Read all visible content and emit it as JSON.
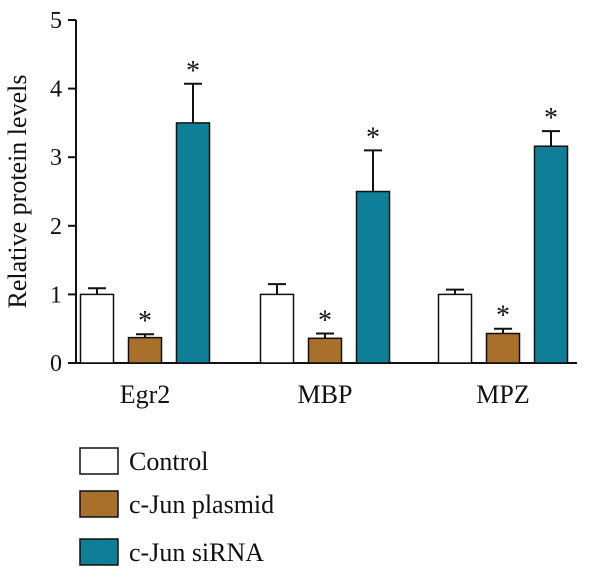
{
  "chart_data": {
    "type": "bar",
    "title": "",
    "xlabel": "",
    "ylabel": "Relative protein levels",
    "ylim": [
      0,
      5
    ],
    "yticks": [
      0,
      1,
      2,
      3,
      4,
      5
    ],
    "grid": false,
    "legend_position": "bottom-left",
    "categories": [
      "Egr2",
      "MBP",
      "MPZ"
    ],
    "series": [
      {
        "name": "Control",
        "color": "#ffffff",
        "values": [
          1.0,
          1.0,
          1.0
        ],
        "errors": [
          0.09,
          0.15,
          0.07
        ],
        "significance": [
          "",
          "",
          ""
        ]
      },
      {
        "name": "c-Jun plasmid",
        "color": "#a8702a",
        "values": [
          0.37,
          0.36,
          0.43
        ],
        "errors": [
          0.05,
          0.07,
          0.07
        ],
        "significance": [
          "*",
          "*",
          "*"
        ]
      },
      {
        "name": "c-Jun siRNA",
        "color": "#0e7f97",
        "values": [
          3.5,
          2.5,
          3.16
        ],
        "errors": [
          0.57,
          0.6,
          0.22
        ],
        "significance": [
          "*",
          "*",
          "*"
        ]
      }
    ]
  }
}
